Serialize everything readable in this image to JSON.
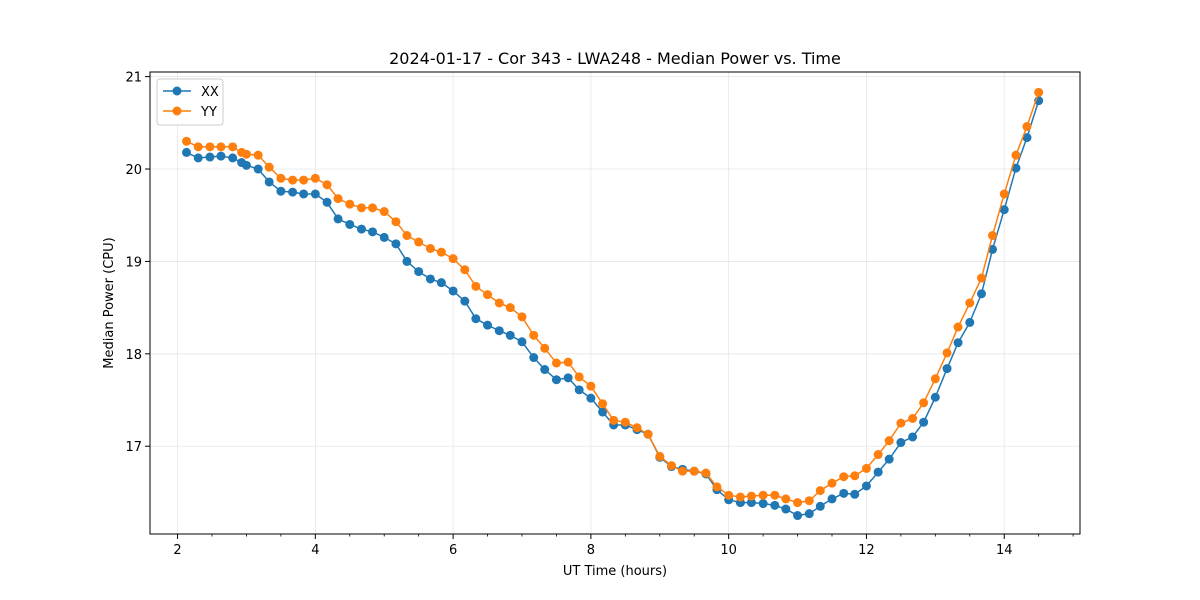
{
  "chart_data": {
    "type": "line",
    "title": "2024-01-17 - Cor 343 - LWA248 - Median Power vs. Time",
    "xlabel": "UT Time (hours)",
    "ylabel": "Median Power (CPU)",
    "xlim": [
      1.6,
      15.1
    ],
    "ylim": [
      16.05,
      21.05
    ],
    "xticks": [
      2,
      4,
      6,
      8,
      10,
      12,
      14
    ],
    "yticks": [
      17,
      18,
      19,
      20,
      21
    ],
    "grid": true,
    "legend_position": "top-left",
    "x": [
      2.13,
      2.3,
      2.47,
      2.63,
      2.8,
      2.93,
      3.0,
      3.17,
      3.33,
      3.5,
      3.67,
      3.83,
      4.0,
      4.17,
      4.33,
      4.5,
      4.67,
      4.83,
      5.0,
      5.17,
      5.33,
      5.5,
      5.67,
      5.83,
      6.0,
      6.17,
      6.33,
      6.5,
      6.67,
      6.83,
      7.0,
      7.17,
      7.33,
      7.5,
      7.67,
      7.83,
      8.0,
      8.17,
      8.33,
      8.5,
      8.67,
      8.83,
      9.0,
      9.17,
      9.33,
      9.5,
      9.67,
      9.83,
      10.0,
      10.17,
      10.33,
      10.5,
      10.67,
      10.83,
      11.0,
      11.17,
      11.33,
      11.5,
      11.67,
      11.83,
      12.0,
      12.17,
      12.33,
      12.5,
      12.67,
      12.83,
      13.0,
      13.17,
      13.33,
      13.5,
      13.67,
      13.83,
      14.0,
      14.17,
      14.33,
      14.5
    ],
    "series": [
      {
        "name": "XX",
        "color": "#1f77b4",
        "values": [
          20.18,
          20.12,
          20.13,
          20.14,
          20.12,
          20.07,
          20.04,
          20.0,
          19.86,
          19.76,
          19.75,
          19.73,
          19.73,
          19.64,
          19.46,
          19.4,
          19.35,
          19.32,
          19.26,
          19.19,
          19.0,
          18.89,
          18.81,
          18.77,
          18.68,
          18.57,
          18.38,
          18.31,
          18.25,
          18.2,
          18.13,
          17.96,
          17.83,
          17.72,
          17.74,
          17.61,
          17.52,
          17.37,
          17.23,
          17.23,
          17.18,
          17.13,
          16.88,
          16.78,
          16.75,
          16.73,
          16.7,
          16.53,
          16.42,
          16.39,
          16.39,
          16.38,
          16.36,
          16.32,
          16.25,
          16.27,
          16.35,
          16.43,
          16.49,
          16.48,
          16.57,
          16.72,
          16.86,
          17.04,
          17.1,
          17.26,
          17.53,
          17.84,
          18.12,
          18.34,
          18.65,
          19.13,
          19.56,
          20.01,
          20.34,
          20.74
        ]
      },
      {
        "name": "YY",
        "color": "#ff7f0e",
        "values": [
          20.3,
          20.24,
          20.24,
          20.24,
          20.24,
          20.18,
          20.16,
          20.15,
          20.02,
          19.9,
          19.88,
          19.88,
          19.9,
          19.83,
          19.68,
          19.62,
          19.58,
          19.58,
          19.54,
          19.43,
          19.28,
          19.21,
          19.14,
          19.1,
          19.03,
          18.91,
          18.73,
          18.64,
          18.55,
          18.5,
          18.4,
          18.2,
          18.06,
          17.9,
          17.91,
          17.75,
          17.65,
          17.46,
          17.28,
          17.26,
          17.2,
          17.13,
          16.89,
          16.79,
          16.73,
          16.73,
          16.71,
          16.56,
          16.47,
          16.45,
          16.46,
          16.47,
          16.47,
          16.43,
          16.39,
          16.41,
          16.52,
          16.6,
          16.67,
          16.68,
          16.76,
          16.91,
          17.06,
          17.25,
          17.3,
          17.47,
          17.73,
          18.01,
          18.29,
          18.55,
          18.82,
          19.28,
          19.73,
          20.15,
          20.46,
          20.83
        ]
      }
    ]
  }
}
